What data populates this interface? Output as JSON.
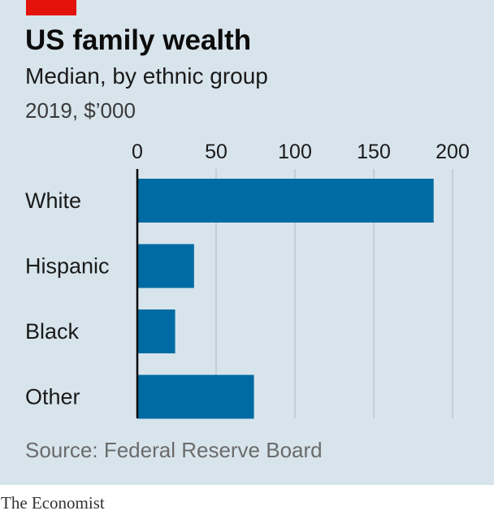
{
  "header": {
    "title": "US family wealth",
    "subtitle": "Median, by ethnic group",
    "units": "2019, $’000"
  },
  "footer": {
    "source": "Source: Federal Reserve Board",
    "brand": "The Economist"
  },
  "colors": {
    "background": "#d8e4ec",
    "bar": "#006ba2",
    "accent_red": "#e3120b",
    "gridline": "#b7c6cf",
    "axis": "#000000"
  },
  "chart_data": {
    "type": "bar",
    "orientation": "horizontal",
    "categories": [
      "White",
      "Hispanic",
      "Black",
      "Other"
    ],
    "values": [
      188,
      36,
      24,
      74
    ],
    "x_ticks": [
      0,
      50,
      100,
      150,
      200
    ],
    "xlim": [
      0,
      200
    ],
    "grid": true,
    "legend": "none"
  }
}
